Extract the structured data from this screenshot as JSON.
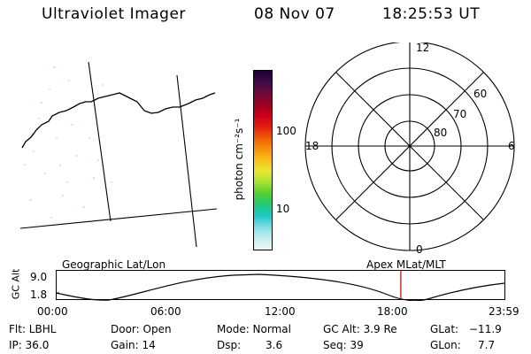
{
  "header": {
    "instrument": "Ultraviolet Imager",
    "date": "08 Nov 07",
    "time": "18:25:53 UT"
  },
  "colorbar": {
    "unit_label": "photon cm⁻²s⁻¹",
    "ticks": [
      "100",
      "10"
    ],
    "colors": [
      "#1a0030",
      "#3d0a4a",
      "#6a0a3a",
      "#9a0022",
      "#c8001a",
      "#e21e10",
      "#f05a0a",
      "#f8900a",
      "#f8c020",
      "#e8e830",
      "#a8e030",
      "#50d030",
      "#20c878",
      "#20c8c8",
      "#80dde6",
      "#c8eef0",
      "#e8f6f8"
    ]
  },
  "polar_plot": {
    "mlt_labels": {
      "top": "12",
      "bottom": "0",
      "left": "18",
      "right": "6"
    },
    "lat_labels": [
      "60",
      "70",
      "80"
    ]
  },
  "timeline": {
    "left_caption": "Geographic Lat/Lon",
    "right_caption": "Apex MLat/MLT",
    "y_axis_label": "GC Alt",
    "y_ticks": [
      "9.0",
      "1.8"
    ],
    "x_ticks": [
      "00:00",
      "06:00",
      "12:00",
      "18:00",
      "23:59"
    ],
    "marker_time": "18:25:53",
    "marker_color": "#c00000"
  },
  "status": {
    "filter": "Flt: LBHL",
    "ip": "IP: 36.0",
    "door": "Door: Open",
    "gain": "Gain: 14",
    "mode": "Mode: Normal",
    "dsp_label": "Dsp:",
    "dsp_value": "3.6",
    "gc_alt": "GC Alt: 3.9 Re",
    "seq": "Seq: 39",
    "glat_label": "GLat:",
    "glat_value": "−11.9",
    "glon_label": "GLon:",
    "glon_value": "7.7"
  }
}
